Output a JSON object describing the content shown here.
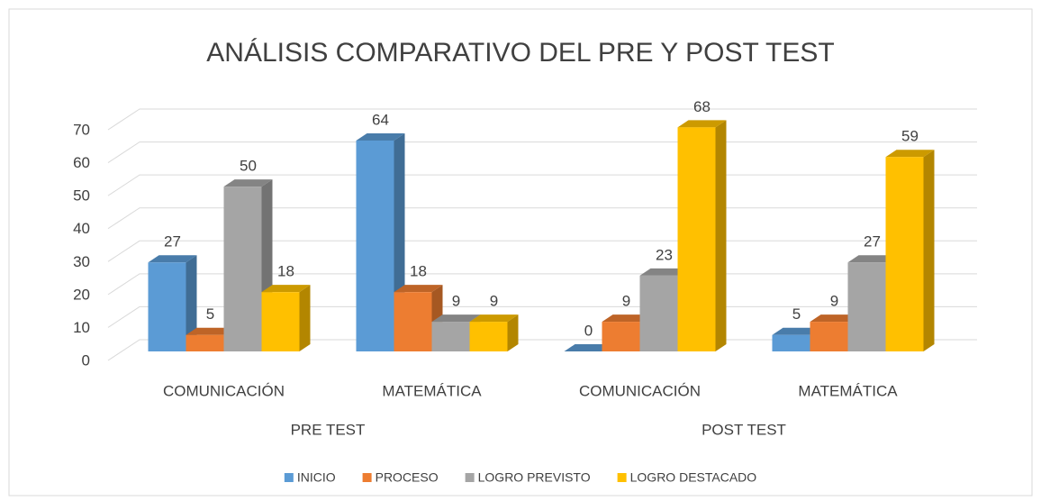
{
  "chart_data": {
    "type": "bar3d",
    "title": "ANÁLISIS COMPARATIVO DEL PRE Y POST TEST",
    "categories": [
      "COMUNICACIÓN",
      "MATEMÁTICA",
      "COMUNICACIÓN",
      "MATEMÁTICA"
    ],
    "groups": [
      "PRE TEST",
      "POST TEST"
    ],
    "series": [
      {
        "name": "INICIO",
        "color": "#5b9bd5",
        "values": [
          27,
          64,
          0,
          5
        ]
      },
      {
        "name": "PROCESO",
        "color": "#ed7d31",
        "values": [
          5,
          18,
          9,
          9
        ]
      },
      {
        "name": "LOGRO PREVISTO",
        "color": "#a5a5a5",
        "values": [
          50,
          9,
          23,
          27
        ]
      },
      {
        "name": "LOGRO DESTACADO",
        "color": "#ffc000",
        "values": [
          18,
          9,
          68,
          59
        ]
      }
    ],
    "ylim": [
      0,
      70
    ],
    "yticks": [
      0,
      10,
      20,
      30,
      40,
      50,
      60,
      70
    ],
    "grid": true,
    "legend": "bottom"
  }
}
